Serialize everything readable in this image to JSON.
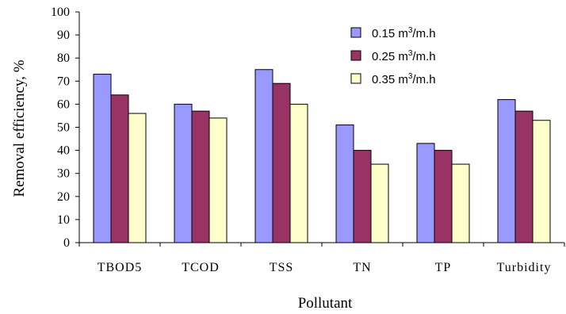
{
  "chart_data": {
    "type": "bar",
    "xlabel": "Pollutant",
    "ylabel": "Removal efficiency, %",
    "ylim": [
      0,
      100
    ],
    "yticks": [
      0,
      10,
      20,
      30,
      40,
      50,
      60,
      70,
      80,
      90,
      100
    ],
    "categories": [
      "TBOD5",
      "TCOD",
      "TSS",
      "TN",
      "TP",
      "Turbidity"
    ],
    "series": [
      {
        "name": "0.15 m³/m.h",
        "unit_base": "0.15 m",
        "unit_sup": "3",
        "unit_rest": "/m.h",
        "color": "#9999ff",
        "values": [
          73,
          60,
          75,
          51,
          43,
          62
        ]
      },
      {
        "name": "0.25 m³/m.h",
        "unit_base": "0.25 m",
        "unit_sup": "3",
        "unit_rest": "/m.h",
        "color": "#993366",
        "values": [
          64,
          57,
          69,
          40,
          40,
          57
        ]
      },
      {
        "name": "0.35 m³/m.h",
        "unit_base": "0.35 m",
        "unit_sup": "3",
        "unit_rest": "/m.h",
        "color": "#ffffcc",
        "values": [
          56,
          54,
          60,
          34,
          34,
          53
        ]
      }
    ],
    "grid": false,
    "legend": "top-right"
  }
}
